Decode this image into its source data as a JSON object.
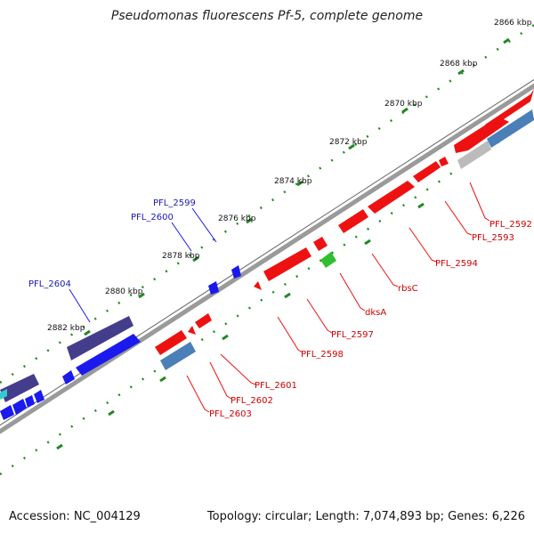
{
  "title": "Pseudomonas fluorescens Pf-5, complete genome",
  "footer": {
    "accession": "Accession: NC_004129",
    "summary": "Topology: circular; Length: 7,074,893 bp; Genes: 6,226"
  },
  "colors": {
    "forward_gene": "#ee1111",
    "reverse_gene": "#1a1aee",
    "forward_operon": "#4a7fb8",
    "reverse_operon": "#443d8c",
    "rna": "#2fbf2f",
    "pseudo": "#bbbbbb",
    "ticks": "#228822",
    "backbone": "#888888"
  },
  "scale_labels": [
    "2866 kbp",
    "2868 kbp",
    "2870 kbp",
    "2872 kbp",
    "2874 kbp",
    "2876 kbp",
    "2878 kbp",
    "2880 kbp",
    "2882 kbp"
  ],
  "forward_labels": [
    "PFL_2592",
    "PFL_2593",
    "PFL_2594",
    "rbsC",
    "dksA",
    "PFL_2597",
    "PFL_2598",
    "PFL_2601",
    "PFL_2602",
    "PFL_2603"
  ],
  "reverse_labels": [
    "PFL_2599",
    "PFL_2600",
    "PFL_2604"
  ]
}
